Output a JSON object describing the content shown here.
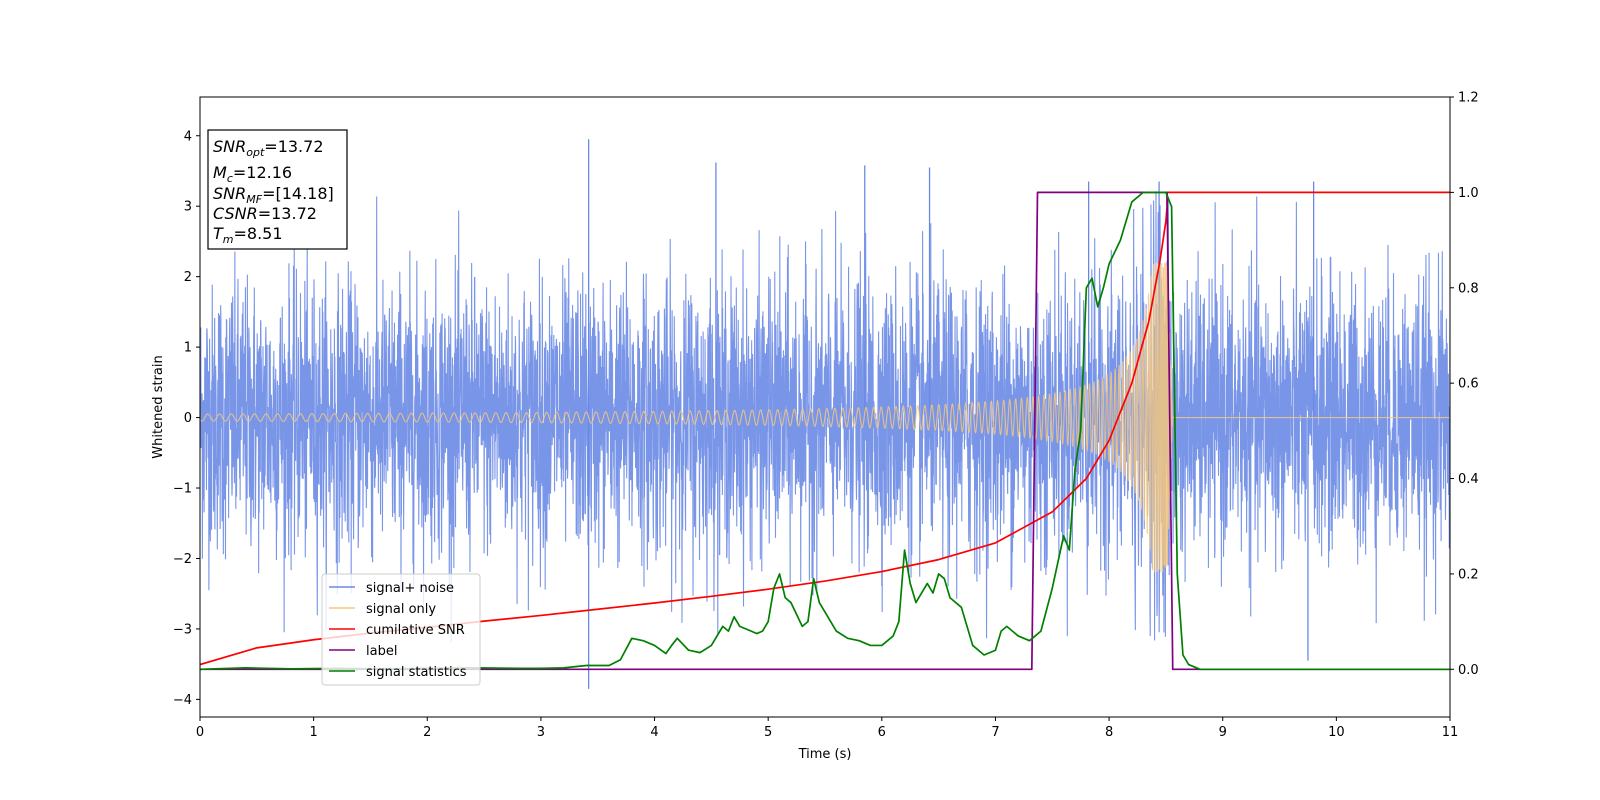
{
  "chart_data": {
    "type": "line",
    "title": "",
    "xlabel": "Time (s)",
    "ylabel": "Whitened strain",
    "xlim": [
      0,
      11
    ],
    "ylim_left": [
      -4.25,
      4.55
    ],
    "ylim_right": [
      -0.1,
      1.2
    ],
    "xticks": [
      "0",
      "1",
      "2",
      "3",
      "4",
      "5",
      "6",
      "7",
      "8",
      "9",
      "10",
      "11"
    ],
    "yticks_left": [
      "−4",
      "−3",
      "−2",
      "−1",
      "0",
      "1",
      "2",
      "3",
      "4"
    ],
    "yticks_right": [
      "0.0",
      "0.2",
      "0.4",
      "0.6",
      "0.8",
      "1.0",
      "1.2"
    ],
    "grid": false,
    "legend_position": "lower-left",
    "annotation": {
      "line1_sym": "SNR",
      "line1_sub": "opt",
      "line1_val": "=13.72",
      "line2_sym": "M",
      "line2_sub": "c",
      "line2_val": "=12.16",
      "line3_sym": "SNR",
      "line3_sub": "MF",
      "line3_val": "=[14.18]",
      "line4_sym": "CSNR",
      "line4_val": "=13.72",
      "line5_sym": "T",
      "line5_sub": "m",
      "line5_val": "=8.51"
    },
    "series": [
      {
        "name": "signal+ noise",
        "axis": "left",
        "color": "#6a89e6",
        "kind": "noise",
        "amplitude_std": 0.95,
        "peak_spikes": [
          [
            3.42,
            3.95
          ],
          [
            3.42,
            -3.85
          ],
          [
            4.54,
            3.62
          ],
          [
            5.85,
            3.58
          ],
          [
            6.42,
            3.55
          ],
          [
            7.82,
            3.35
          ],
          [
            8.44,
            3.35
          ],
          [
            9.8,
            3.35
          ],
          [
            9.75,
            -3.45
          ]
        ]
      },
      {
        "name": "signal only",
        "axis": "left",
        "color": "#f5c77e",
        "kind": "chirp",
        "merger_time": 8.51,
        "ringdown_end": 8.56,
        "peak_amplitude": 2.2
      },
      {
        "name": "cumilative SNR",
        "axis": "right",
        "color": "#ff0000",
        "x": [
          0,
          0.5,
          1,
          1.5,
          2,
          2.5,
          3,
          3.5,
          4,
          4.5,
          5,
          5.5,
          6,
          6.5,
          7,
          7.5,
          7.8,
          8.0,
          8.2,
          8.35,
          8.45,
          8.5,
          8.51,
          8.51,
          11
        ],
        "y": [
          0.01,
          0.045,
          0.062,
          0.076,
          0.088,
          0.101,
          0.113,
          0.126,
          0.139,
          0.153,
          0.168,
          0.185,
          0.205,
          0.23,
          0.265,
          0.33,
          0.4,
          0.48,
          0.6,
          0.73,
          0.86,
          0.94,
          0.97,
          1.0,
          1.0
        ]
      },
      {
        "name": "label",
        "axis": "right",
        "color": "#800080",
        "x": [
          0,
          7.32,
          7.37,
          8.51,
          8.56,
          11
        ],
        "y": [
          0.0,
          0.0,
          1.0,
          1.0,
          0.0,
          0.0
        ]
      },
      {
        "name": "signal statistics",
        "axis": "right",
        "color": "#008000",
        "x": [
          0,
          0.4,
          0.8,
          1.2,
          1.6,
          2.0,
          2.4,
          2.8,
          3.0,
          3.2,
          3.4,
          3.6,
          3.7,
          3.8,
          3.9,
          4.0,
          4.1,
          4.15,
          4.2,
          4.3,
          4.4,
          4.5,
          4.6,
          4.65,
          4.7,
          4.75,
          4.8,
          4.85,
          4.9,
          4.95,
          5.0,
          5.05,
          5.1,
          5.15,
          5.2,
          5.3,
          5.35,
          5.4,
          5.45,
          5.5,
          5.6,
          5.7,
          5.8,
          5.9,
          6.0,
          6.1,
          6.15,
          6.2,
          6.25,
          6.3,
          6.4,
          6.45,
          6.5,
          6.55,
          6.6,
          6.7,
          6.8,
          6.9,
          6.95,
          7.0,
          7.05,
          7.1,
          7.2,
          7.3,
          7.35,
          7.4,
          7.5,
          7.6,
          7.65,
          7.7,
          7.75,
          7.8,
          7.85,
          7.9,
          7.95,
          8.0,
          8.1,
          8.2,
          8.3,
          8.4,
          8.5,
          8.55,
          8.6,
          8.65,
          8.7,
          8.8,
          9.0,
          10.0,
          11.0
        ],
        "y": [
          0.0,
          0.003,
          0.001,
          0.002,
          0.001,
          0.002,
          0.003,
          0.002,
          0.002,
          0.003,
          0.008,
          0.008,
          0.02,
          0.065,
          0.06,
          0.05,
          0.033,
          0.05,
          0.065,
          0.04,
          0.035,
          0.05,
          0.09,
          0.08,
          0.11,
          0.09,
          0.085,
          0.08,
          0.075,
          0.08,
          0.1,
          0.17,
          0.2,
          0.15,
          0.14,
          0.09,
          0.1,
          0.19,
          0.14,
          0.12,
          0.08,
          0.065,
          0.06,
          0.05,
          0.05,
          0.07,
          0.1,
          0.25,
          0.18,
          0.14,
          0.18,
          0.16,
          0.2,
          0.19,
          0.15,
          0.13,
          0.05,
          0.03,
          0.035,
          0.04,
          0.08,
          0.09,
          0.07,
          0.06,
          0.07,
          0.08,
          0.17,
          0.28,
          0.25,
          0.42,
          0.5,
          0.8,
          0.82,
          0.76,
          0.8,
          0.85,
          0.9,
          0.98,
          1.0,
          1.0,
          1.0,
          0.97,
          0.2,
          0.03,
          0.01,
          0.0,
          0.0,
          0.0,
          0.0
        ]
      }
    ]
  }
}
